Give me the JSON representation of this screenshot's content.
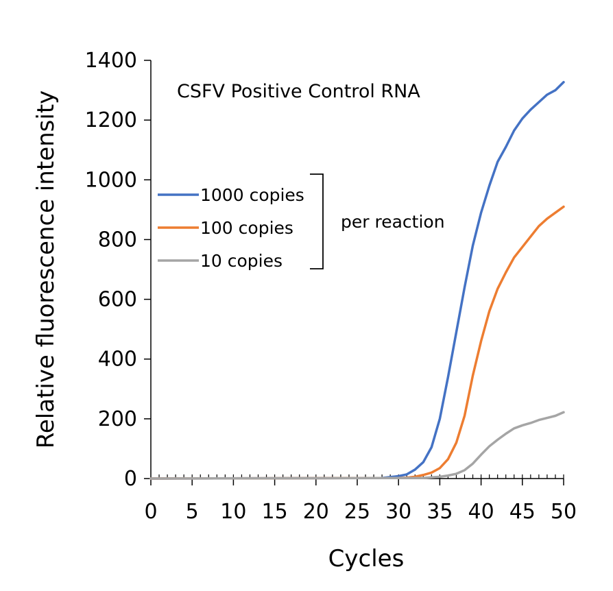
{
  "chart_data": {
    "type": "line",
    "title": "CSFV Positive Control RNA",
    "xlabel": "Cycles",
    "ylabel": "Relative fluorescence intensity",
    "xlim": [
      0,
      50
    ],
    "ylim": [
      0,
      1400
    ],
    "xticks": [
      0,
      5,
      10,
      15,
      20,
      25,
      30,
      35,
      40,
      45,
      50
    ],
    "yticks": [
      0,
      200,
      400,
      600,
      800,
      1000,
      1200,
      1400
    ],
    "grid": false,
    "legend_position": "left",
    "legend_group_label": "per reaction",
    "series": [
      {
        "name": "1000 copies",
        "color": "#4472C4",
        "x": [
          0,
          28,
          29,
          30,
          31,
          32,
          33,
          34,
          35,
          36,
          37,
          38,
          39,
          40,
          41,
          42,
          43,
          44,
          45,
          46,
          47,
          48,
          49,
          50
        ],
        "y": [
          0,
          2,
          5,
          8,
          14,
          30,
          55,
          105,
          200,
          340,
          490,
          640,
          780,
          890,
          980,
          1060,
          1110,
          1165,
          1205,
          1235,
          1260,
          1285,
          1300,
          1327
        ]
      },
      {
        "name": "100 copies",
        "color": "#ED7D31",
        "x": [
          0,
          30,
          31,
          32,
          33,
          34,
          35,
          36,
          37,
          38,
          39,
          40,
          41,
          42,
          43,
          44,
          45,
          46,
          47,
          48,
          49,
          50
        ],
        "y": [
          0,
          2,
          3,
          6,
          12,
          20,
          35,
          65,
          120,
          210,
          345,
          460,
          560,
          635,
          690,
          740,
          775,
          810,
          845,
          870,
          890,
          910
        ]
      },
      {
        "name": "10 copies",
        "color": "#A5A5A5",
        "x": [
          0,
          33,
          34,
          35,
          36,
          37,
          38,
          39,
          40,
          41,
          42,
          43,
          44,
          45,
          46,
          47,
          48,
          49,
          50
        ],
        "y": [
          0,
          2,
          4,
          6,
          10,
          16,
          28,
          50,
          80,
          108,
          130,
          150,
          168,
          178,
          186,
          196,
          203,
          210,
          222
        ]
      }
    ]
  }
}
